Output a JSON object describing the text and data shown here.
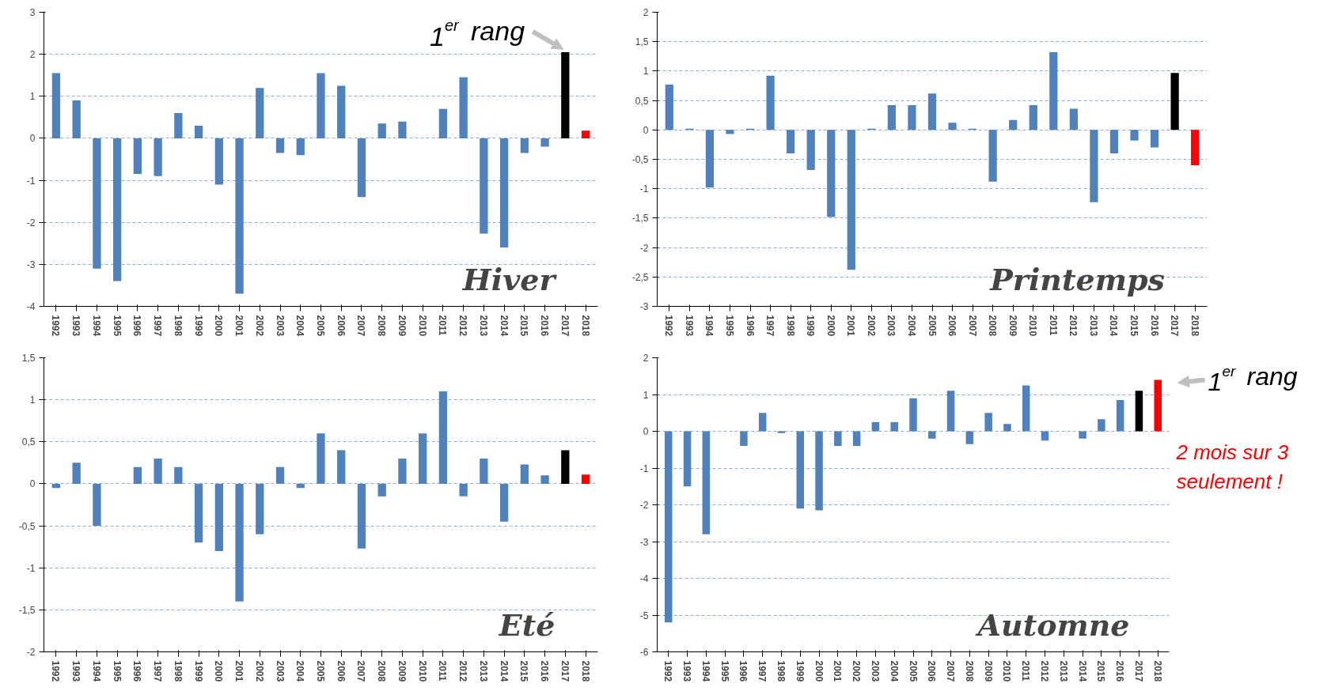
{
  "chart_data": [
    {
      "type": "bar",
      "title": "Hiver",
      "categories": [
        "1992",
        "1993",
        "1994",
        "1995",
        "1996",
        "1997",
        "1998",
        "1999",
        "2000",
        "2001",
        "2002",
        "2003",
        "2004",
        "2005",
        "2006",
        "2007",
        "2008",
        "2009",
        "2010",
        "2011",
        "2012",
        "2013",
        "2014",
        "2015",
        "2016",
        "2017",
        "2018"
      ],
      "values": [
        1.55,
        0.9,
        -3.1,
        -3.4,
        -0.85,
        -0.9,
        0.6,
        0.3,
        -1.1,
        -3.7,
        1.2,
        -0.35,
        -0.4,
        1.55,
        1.25,
        -1.4,
        0.35,
        0.4,
        0,
        0.7,
        1.45,
        -2.27,
        -2.6,
        -0.35,
        -0.2,
        2.05,
        0.18
      ],
      "colors": [
        "#4f81bd",
        "#4f81bd",
        "#4f81bd",
        "#4f81bd",
        "#4f81bd",
        "#4f81bd",
        "#4f81bd",
        "#4f81bd",
        "#4f81bd",
        "#4f81bd",
        "#4f81bd",
        "#4f81bd",
        "#4f81bd",
        "#4f81bd",
        "#4f81bd",
        "#4f81bd",
        "#4f81bd",
        "#4f81bd",
        "#4f81bd",
        "#4f81bd",
        "#4f81bd",
        "#4f81bd",
        "#4f81bd",
        "#4f81bd",
        "#4f81bd",
        "#000000",
        "#ff0000"
      ],
      "ylim": [
        -4,
        3
      ],
      "yticks": [
        -4,
        -3,
        -2,
        -1,
        0,
        1,
        2,
        3
      ],
      "grid": "y",
      "annotations": [
        {
          "text": "1$^{er}$ rang",
          "x": "2017",
          "y": 2.05
        }
      ]
    },
    {
      "type": "bar",
      "title": "Printemps",
      "categories": [
        "1992",
        "1993",
        "1994",
        "1995",
        "1996",
        "1997",
        "1998",
        "1999",
        "2000",
        "2001",
        "2002",
        "2003",
        "2004",
        "2005",
        "2006",
        "2007",
        "2008",
        "2009",
        "2010",
        "2011",
        "2012",
        "2013",
        "2014",
        "2015",
        "2016",
        "2017",
        "2018"
      ],
      "values": [
        0.77,
        0.02,
        -0.98,
        -0.07,
        0.02,
        0.92,
        -0.4,
        -0.68,
        -1.48,
        -2.38,
        0.02,
        0.42,
        0.42,
        0.62,
        0.12,
        0.02,
        -0.88,
        0.17,
        0.42,
        1.32,
        0.36,
        -1.23,
        -0.4,
        -0.18,
        -0.3,
        0.97,
        -0.6
      ],
      "colors": [
        "#4f81bd",
        "#4f81bd",
        "#4f81bd",
        "#4f81bd",
        "#4f81bd",
        "#4f81bd",
        "#4f81bd",
        "#4f81bd",
        "#4f81bd",
        "#4f81bd",
        "#4f81bd",
        "#4f81bd",
        "#4f81bd",
        "#4f81bd",
        "#4f81bd",
        "#4f81bd",
        "#4f81bd",
        "#4f81bd",
        "#4f81bd",
        "#4f81bd",
        "#4f81bd",
        "#4f81bd",
        "#4f81bd",
        "#4f81bd",
        "#4f81bd",
        "#000000",
        "#ff0000"
      ],
      "ylim": [
        -3,
        2
      ],
      "yticks": [
        -3,
        {
          "value": -2.5,
          "label": "-2,5"
        },
        -2,
        {
          "value": -1.5,
          "label": "-1,5"
        },
        -1,
        {
          "value": -0.5,
          "label": "-0,5"
        },
        0,
        {
          "value": 0.5,
          "label": "0,5"
        },
        1,
        {
          "value": 1.5,
          "label": "1,5"
        },
        2
      ],
      "grid": "y"
    },
    {
      "type": "bar",
      "title": "Eté",
      "categories": [
        "1992",
        "1993",
        "1994",
        "1995",
        "1996",
        "1997",
        "1998",
        "1999",
        "2000",
        "2001",
        "2002",
        "2003",
        "2004",
        "2005",
        "2006",
        "2007",
        "2008",
        "2009",
        "2010",
        "2011",
        "2012",
        "2013",
        "2014",
        "2015",
        "2016",
        "2017",
        "2018"
      ],
      "values": [
        -0.05,
        0.25,
        -0.5,
        0,
        0.2,
        0.3,
        0.2,
        -0.7,
        -0.8,
        -1.4,
        -0.6,
        0.2,
        -0.05,
        0.6,
        0.4,
        -0.77,
        -0.15,
        0.3,
        0.6,
        1.1,
        -0.15,
        0.3,
        -0.45,
        0.23,
        0.1,
        0.4,
        0.11
      ],
      "colors": [
        "#4f81bd",
        "#4f81bd",
        "#4f81bd",
        "#4f81bd",
        "#4f81bd",
        "#4f81bd",
        "#4f81bd",
        "#4f81bd",
        "#4f81bd",
        "#4f81bd",
        "#4f81bd",
        "#4f81bd",
        "#4f81bd",
        "#4f81bd",
        "#4f81bd",
        "#4f81bd",
        "#4f81bd",
        "#4f81bd",
        "#4f81bd",
        "#4f81bd",
        "#4f81bd",
        "#4f81bd",
        "#4f81bd",
        "#4f81bd",
        "#4f81bd",
        "#000000",
        "#ff0000"
      ],
      "ylim": [
        -2,
        1.5
      ],
      "yticks": [
        -2,
        {
          "value": -1.5,
          "label": "-1,5"
        },
        -1,
        {
          "value": -0.5,
          "label": "-0,5"
        },
        0,
        {
          "value": 0.5,
          "label": "0,5"
        },
        1,
        {
          "value": 1.5,
          "label": "1,5"
        }
      ],
      "grid": "y"
    },
    {
      "type": "bar",
      "title": "Automne",
      "categories": [
        "1992",
        "1993",
        "1994",
        "1995",
        "1996",
        "1997",
        "1998",
        "1999",
        "2000",
        "2001",
        "2002",
        "2003",
        "2004",
        "2005",
        "2006",
        "2007",
        "2008",
        "2009",
        "2010",
        "2011",
        "2012",
        "2013",
        "2014",
        "2015",
        "2016",
        "2017",
        "2018"
      ],
      "values": [
        -5.2,
        -1.5,
        -2.8,
        0,
        -0.4,
        0.5,
        -0.05,
        -2.1,
        -2.15,
        -0.4,
        -0.4,
        0.25,
        0.25,
        0.9,
        -0.2,
        1.1,
        -0.35,
        0.5,
        0.2,
        1.25,
        -0.25,
        0,
        -0.2,
        0.33,
        0.85,
        1.1,
        1.4
      ],
      "colors": [
        "#4f81bd",
        "#4f81bd",
        "#4f81bd",
        "#4f81bd",
        "#4f81bd",
        "#4f81bd",
        "#4f81bd",
        "#4f81bd",
        "#4f81bd",
        "#4f81bd",
        "#4f81bd",
        "#4f81bd",
        "#4f81bd",
        "#4f81bd",
        "#4f81bd",
        "#4f81bd",
        "#4f81bd",
        "#4f81bd",
        "#4f81bd",
        "#4f81bd",
        "#4f81bd",
        "#4f81bd",
        "#4f81bd",
        "#4f81bd",
        "#4f81bd",
        "#000000",
        "#ff0000"
      ],
      "ylim": [
        -6,
        2
      ],
      "yticks": [
        -6,
        -5,
        -4,
        -3,
        -2,
        -1,
        0,
        1,
        2
      ],
      "grid": "y",
      "annotations": [
        {
          "text": "1$^{er}$ rang",
          "x": "2018",
          "y": 1.4
        },
        "2 mois sur 3 seulement  !"
      ]
    }
  ]
}
